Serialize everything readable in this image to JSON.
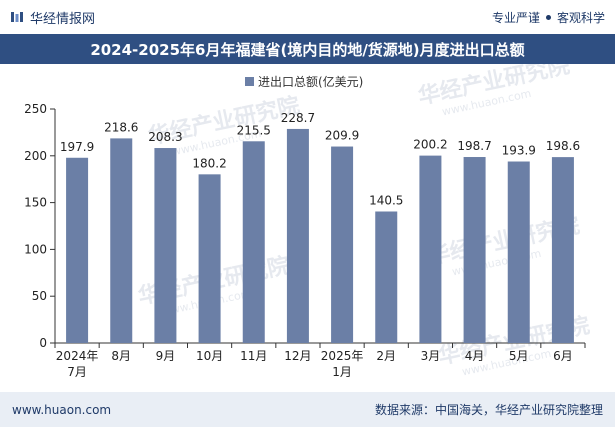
{
  "header": {
    "brand_name": "华经情报网",
    "tagline_left": "专业严谨",
    "tagline_right": "客观科学"
  },
  "title": "2024-2025年6月年福建省(境内目的地/货源地)月度进出口总额",
  "footer": {
    "website": "www.huaon.com",
    "source": "数据来源：中国海关，华经产业研究院整理"
  },
  "watermark": {
    "text": "华经产业研究院",
    "url": "www.huaon.com"
  },
  "colors": {
    "bar": "#6b7fa6",
    "title_bg": "#2f4f82",
    "footer_bg": "#e9eef5",
    "axis": "#333333"
  },
  "chart_data": {
    "type": "bar",
    "title": "2024-2025年6月年福建省(境内目的地/货源地)月度进出口总额",
    "legend": "进出口总额(亿美元)",
    "legend_position": "top-center",
    "categories": [
      [
        "2024年",
        "7月"
      ],
      [
        "8月"
      ],
      [
        "9月"
      ],
      [
        "10月"
      ],
      [
        "11月"
      ],
      [
        "12月"
      ],
      [
        "2025年",
        "1月"
      ],
      [
        "2月"
      ],
      [
        "3月"
      ],
      [
        "4月"
      ],
      [
        "5月"
      ],
      [
        "6月"
      ]
    ],
    "values": [
      197.9,
      218.6,
      208.3,
      180.2,
      215.5,
      228.7,
      209.9,
      140.5,
      200.2,
      198.7,
      193.9,
      198.6
    ],
    "value_labels": [
      "197.9",
      "218.6",
      "208.3",
      "180.2",
      "215.5",
      "228.7",
      "209.9",
      "140.5",
      "200.2",
      "198.7",
      "193.9",
      "198.6"
    ],
    "yticks": [
      0,
      50,
      100,
      150,
      200,
      250
    ],
    "ylim": [
      0,
      250
    ],
    "xlabel": "",
    "ylabel": "",
    "grid": false
  }
}
